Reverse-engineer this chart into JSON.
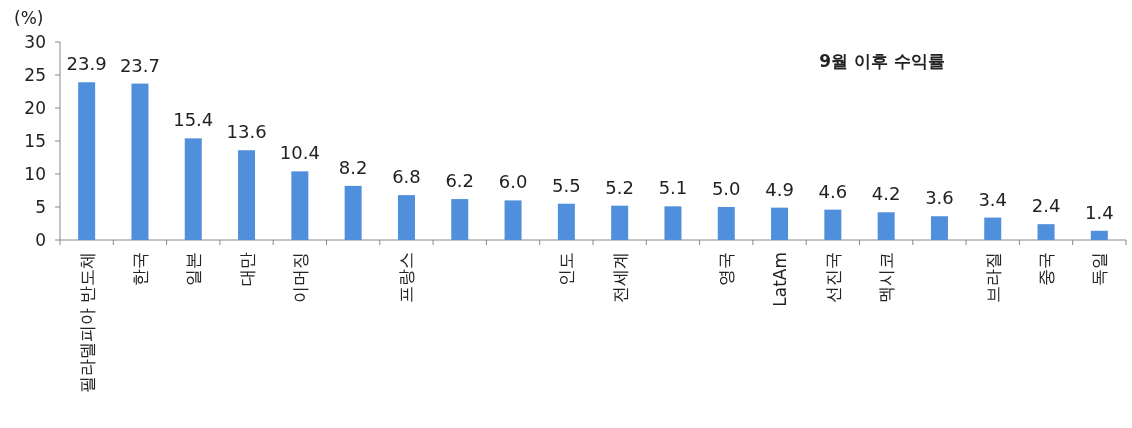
{
  "chart_data": {
    "type": "bar",
    "title": "9월 이후 수익률",
    "ylabel": "(%)",
    "categories": [
      "필라델피아 반도체",
      "한국",
      "일본",
      "대만",
      "이머징",
      null,
      "프랑스",
      null,
      null,
      "인도",
      "전세계",
      null,
      "영국",
      "LatAm",
      "선진국",
      "멕시코",
      null,
      "브라질",
      "중국",
      "독일"
    ],
    "values": [
      23.9,
      23.7,
      15.4,
      13.6,
      10.4,
      8.2,
      6.8,
      6.2,
      6.0,
      5.5,
      5.2,
      5.1,
      5.0,
      4.9,
      4.6,
      4.2,
      3.6,
      3.4,
      2.4,
      1.4
    ],
    "value_labels": [
      "23.9",
      "23.7",
      "15.4",
      "13.6",
      "10.4",
      "8.2",
      "6.8",
      "6.2",
      "6.0",
      "5.5",
      "5.2",
      "5.1",
      "5.0",
      "4.9",
      "4.6",
      "4.2",
      "3.6",
      "3.4",
      "2.4",
      "1.4"
    ],
    "color": "#4f8fdc",
    "ylim": [
      0,
      30
    ],
    "yticks": [
      0,
      5,
      10,
      15,
      20,
      25,
      30
    ]
  }
}
